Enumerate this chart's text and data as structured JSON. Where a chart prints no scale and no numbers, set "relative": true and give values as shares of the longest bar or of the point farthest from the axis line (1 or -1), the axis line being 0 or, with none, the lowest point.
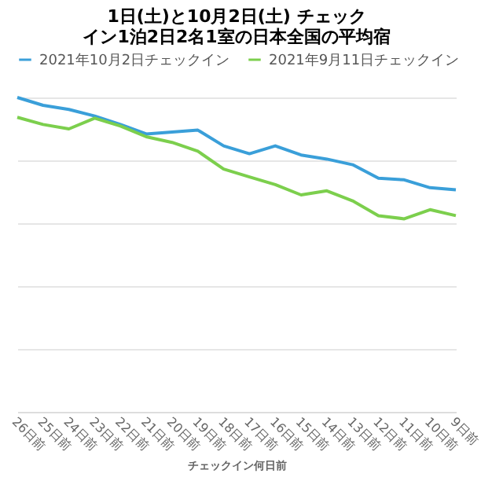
{
  "chart_data": {
    "type": "line",
    "title": "1日(土)と10月2日(土) チェックイン1泊2日2名1室の日本全国の平均宿",
    "xlabel": "チェックイン何日前",
    "relative": true,
    "grid": "y",
    "legend": "top",
    "marker": "none",
    "line_style": "solid",
    "categories": [
      "26日前",
      "25日前",
      "24日前",
      "23日前",
      "22日前",
      "21日前",
      "20日前",
      "19日前",
      "18日前",
      "17日前",
      "16日前",
      "15日前",
      "14日前",
      "13日前",
      "12日前",
      "11日前",
      "10日前",
      "9日前"
    ],
    "series": [
      {
        "name": "2021年10月2日チェックイン",
        "color": "#3a9fd9",
        "values": [
          1.0,
          0.975,
          0.962,
          0.941,
          0.914,
          0.884,
          0.89,
          0.896,
          0.846,
          0.821,
          0.846,
          0.817,
          0.804,
          0.786,
          0.743,
          0.738,
          0.713,
          0.706
        ]
      },
      {
        "name": "2021年9月11日チェックイン",
        "color": "#7ccf4d",
        "values": [
          0.937,
          0.914,
          0.9,
          0.934,
          0.909,
          0.875,
          0.857,
          0.829,
          0.772,
          0.747,
          0.723,
          0.69,
          0.703,
          0.671,
          0.624,
          0.614,
          0.643,
          0.624
        ]
      }
    ]
  }
}
